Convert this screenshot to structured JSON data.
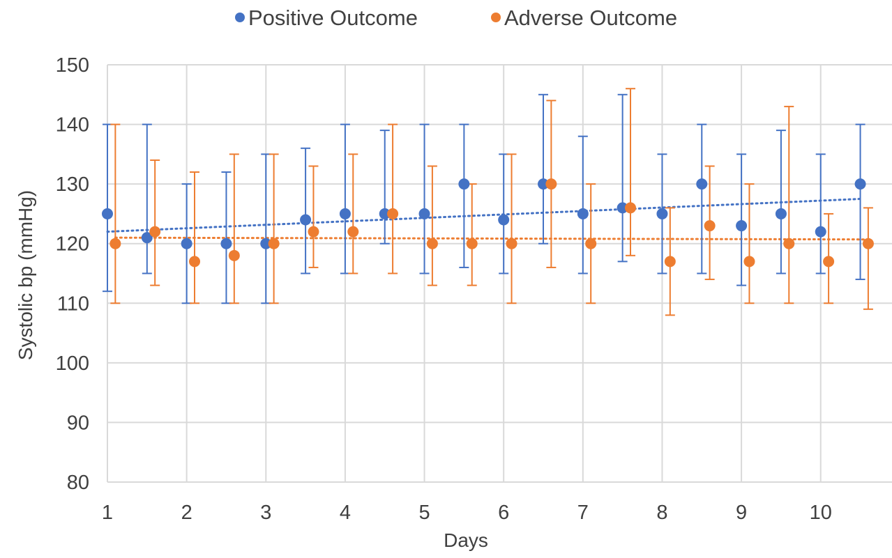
{
  "chart_data": {
    "type": "scatter",
    "title": "",
    "xlabel": "Days",
    "ylabel": "Systolic bp (mmHg)",
    "xlim": [
      1,
      10.9
    ],
    "ylim": [
      80,
      150
    ],
    "xticks": [
      1,
      2,
      3,
      4,
      5,
      6,
      7,
      8,
      9,
      10
    ],
    "yticks": [
      80,
      90,
      100,
      110,
      120,
      130,
      140,
      150
    ],
    "grid": true,
    "legend_position": "top",
    "series": [
      {
        "name": "Positive Outcome",
        "color": "#4472c4",
        "x": [
          1,
          1.5,
          2,
          2.5,
          3,
          3.5,
          4,
          4.5,
          5,
          5.5,
          6,
          6.5,
          7,
          7.5,
          8,
          8.5,
          9,
          9.5,
          10,
          10.5
        ],
        "y": [
          125,
          121,
          120,
          120,
          120,
          124,
          125,
          125,
          125,
          130,
          124,
          130,
          125,
          126,
          125,
          130,
          123,
          125,
          122,
          130
        ],
        "err_low": [
          112,
          115,
          110,
          110,
          110,
          115,
          115,
          120,
          115,
          116,
          115,
          120,
          115,
          117,
          115,
          115,
          113,
          115,
          115,
          114
        ],
        "err_high": [
          140,
          140,
          130,
          132,
          135,
          136,
          140,
          139,
          140,
          140,
          135,
          145,
          138,
          145,
          135,
          140,
          135,
          139,
          135,
          140
        ],
        "trendline": [
          122,
          127.5
        ]
      },
      {
        "name": "Adverse Outcome",
        "color": "#ed7d31",
        "x": [
          1.1,
          1.6,
          2.1,
          2.6,
          3.1,
          3.6,
          4.1,
          4.6,
          5.1,
          5.6,
          6.1,
          6.6,
          7.1,
          7.6,
          8.1,
          8.6,
          9.1,
          9.6,
          10.1,
          10.6
        ],
        "y": [
          120,
          122,
          117,
          118,
          120,
          122,
          122,
          125,
          120,
          120,
          120,
          130,
          120,
          126,
          117,
          123,
          117,
          120,
          117,
          120
        ],
        "err_low": [
          110,
          113,
          110,
          110,
          110,
          116,
          115,
          115,
          113,
          113,
          110,
          116,
          110,
          118,
          108,
          114,
          110,
          110,
          110,
          109
        ],
        "err_high": [
          140,
          134,
          132,
          135,
          135,
          133,
          135,
          140,
          133,
          130,
          135,
          144,
          130,
          146,
          126,
          133,
          130,
          143,
          125,
          126
        ],
        "trendline": [
          121,
          120.7
        ]
      }
    ]
  }
}
